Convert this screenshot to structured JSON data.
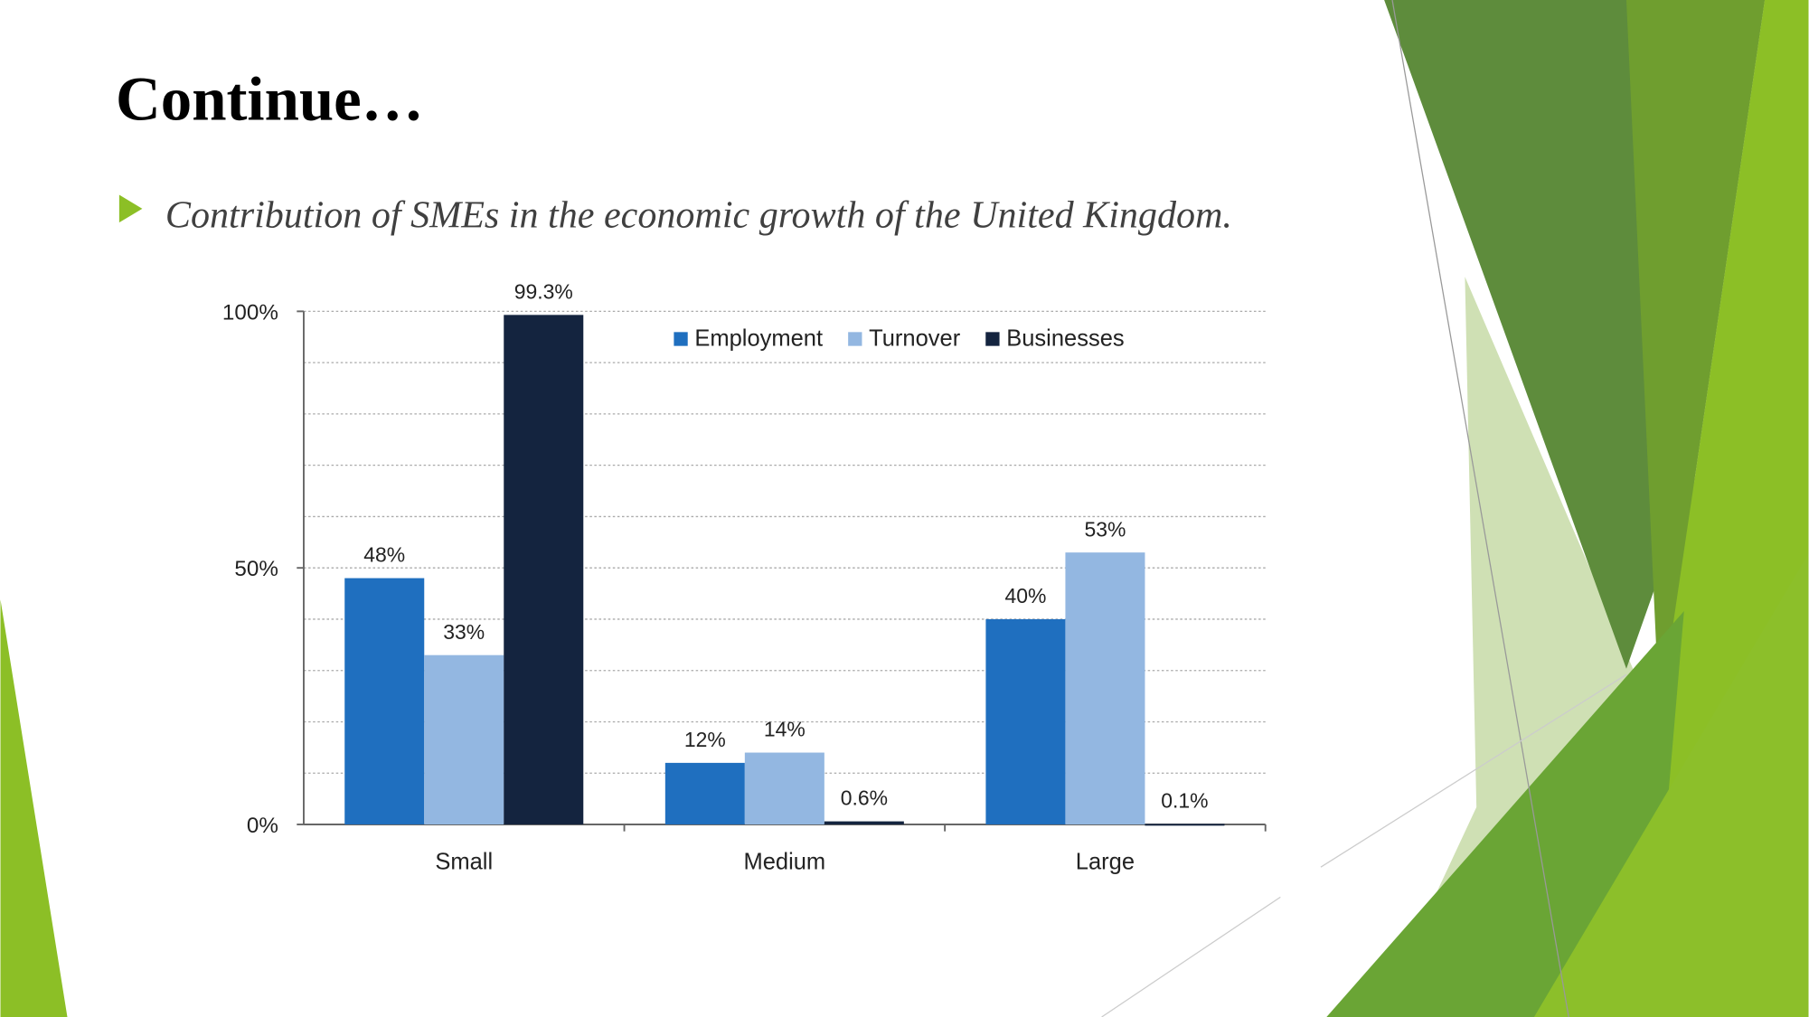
{
  "title": "Continue…",
  "bullet": "Contribution of SMEs in the economic growth of the United Kingdom.",
  "chart_data": {
    "type": "bar",
    "categories": [
      "Small",
      "Medium",
      "Large"
    ],
    "series": [
      {
        "name": "Employment",
        "color": "#1f6fbf",
        "values": [
          48,
          12,
          40
        ],
        "value_labels": [
          "48%",
          "12%",
          "40%"
        ]
      },
      {
        "name": "Turnover",
        "color": "#93b7e1",
        "values": [
          33,
          14,
          53
        ],
        "value_labels": [
          "33%",
          "14%",
          "53%"
        ]
      },
      {
        "name": "Businesses",
        "color": "#14243f",
        "values": [
          99.3,
          0.6,
          0.1
        ],
        "value_labels": [
          "99.3%",
          "0.6%",
          "0.1%"
        ]
      }
    ],
    "ylim": [
      0,
      100
    ],
    "yticks": [
      {
        "value": 0,
        "label": "0%"
      },
      {
        "value": 50,
        "label": "50%"
      },
      {
        "value": 100,
        "label": "100%"
      }
    ],
    "y_gridlines": [
      10,
      20,
      30,
      40,
      50,
      60,
      70,
      80,
      90,
      100
    ],
    "grid": true,
    "legend": "top-right"
  }
}
